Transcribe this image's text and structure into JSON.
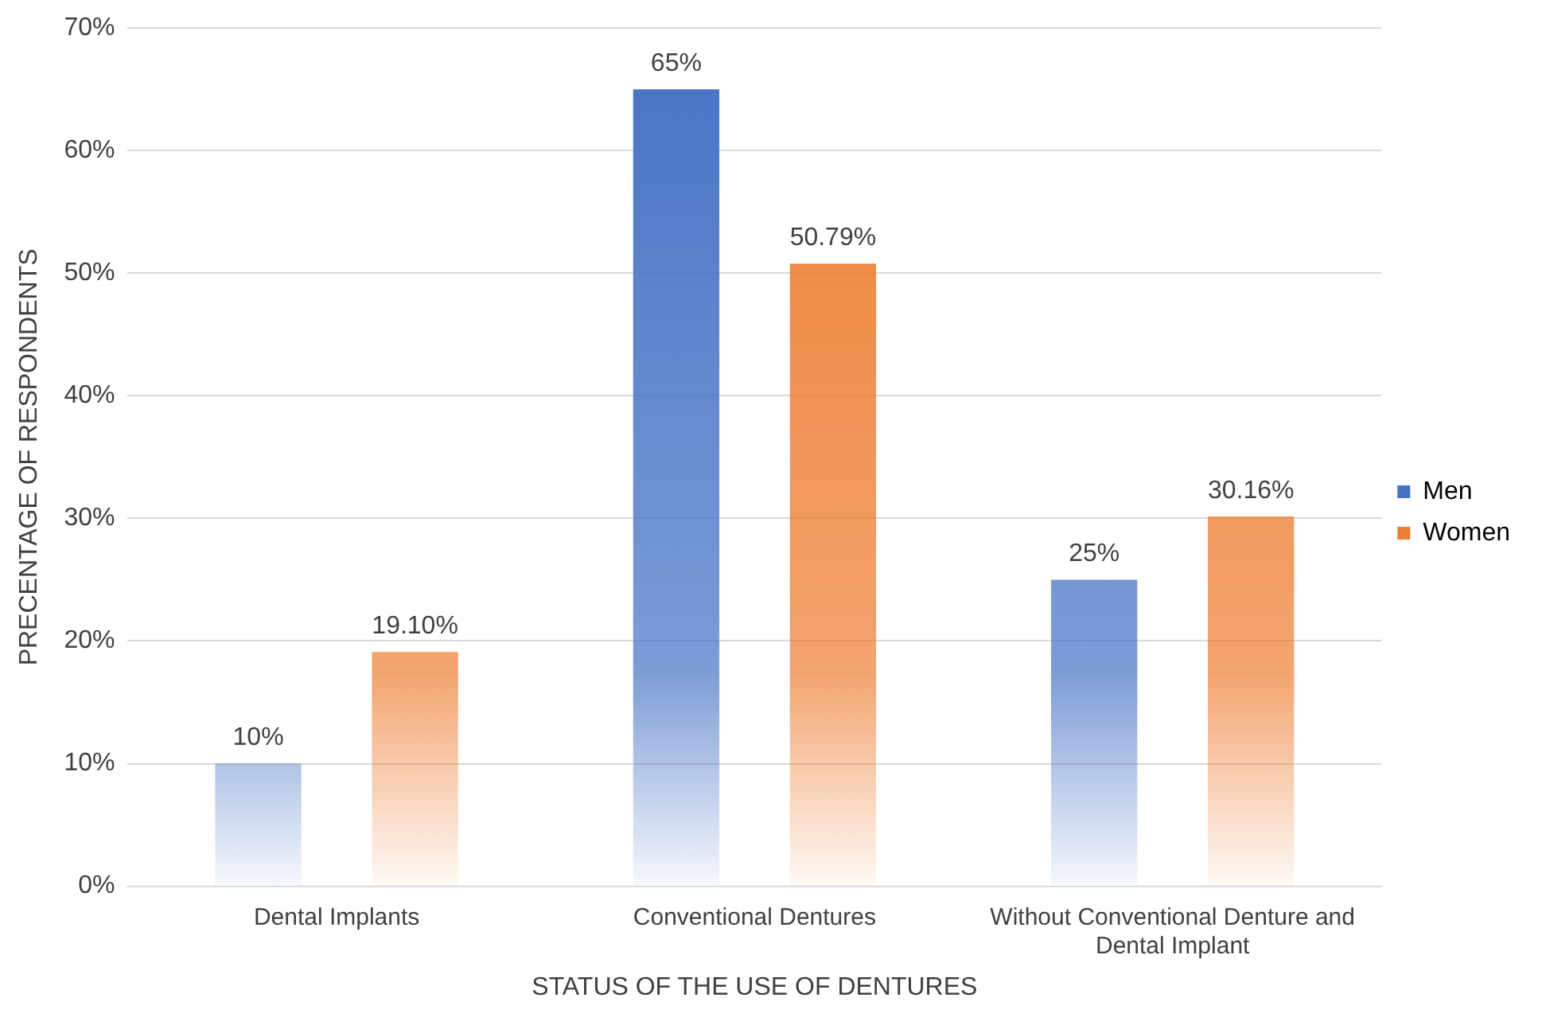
{
  "chart_data": {
    "type": "bar",
    "xlabel": "STATUS OF THE USE OF DENTURES",
    "ylabel": "PRECENTAGE OF RESPONDENTS",
    "categories": [
      "Dental Implants",
      "Conventional Dentures",
      "Without Conventional Denture and Dental Implant"
    ],
    "series": [
      {
        "name": "Men",
        "color": "#4472c4",
        "values": [
          10,
          65,
          25
        ],
        "value_labels": [
          "10%",
          "65%",
          "25%"
        ]
      },
      {
        "name": "Women",
        "color": "#ed7d31",
        "values": [
          19.1,
          50.79,
          30.16
        ],
        "value_labels": [
          "19.10%",
          "50.79%",
          "30.16%"
        ]
      }
    ],
    "ylim": [
      0,
      70
    ],
    "yticks": [
      {
        "value": 0,
        "label": "0%"
      },
      {
        "value": 10,
        "label": "10%"
      },
      {
        "value": 20,
        "label": "20%"
      },
      {
        "value": 30,
        "label": "30%"
      },
      {
        "value": 40,
        "label": "40%"
      },
      {
        "value": 50,
        "label": "50%"
      },
      {
        "value": 60,
        "label": "60%"
      },
      {
        "value": 70,
        "label": "70%"
      }
    ],
    "grid": "y",
    "legend": "right"
  }
}
